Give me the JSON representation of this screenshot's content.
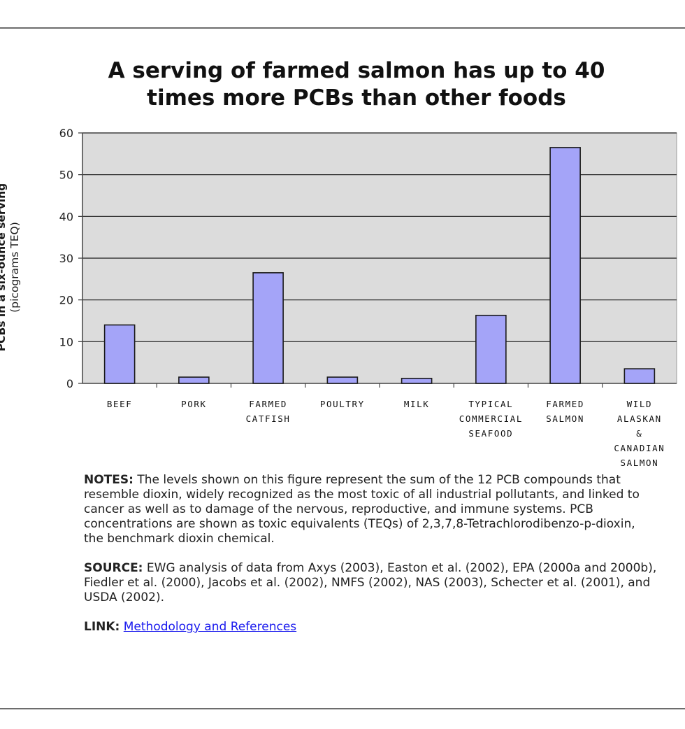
{
  "title_lines": [
    "A serving of farmed salmon has up to 40",
    "times more PCBs than other foods"
  ],
  "chart_data": {
    "type": "bar",
    "title": "A serving of farmed salmon has up to 40 times more PCBs than other foods",
    "ylabel_bold": "PCBs in a six-ounce serving",
    "ylabel_sub": "(picograms TEQ)",
    "xlabel": "",
    "ylim": [
      0,
      60
    ],
    "yticks": [
      0,
      10,
      20,
      30,
      40,
      50,
      60
    ],
    "grid": true,
    "legend": "none",
    "bar_color": "#a4a4f8",
    "plot_background": "#dcdcdc",
    "categories": [
      [
        "BEEF"
      ],
      [
        "PORK"
      ],
      [
        "FARMED",
        "CATFISH"
      ],
      [
        "POULTRY"
      ],
      [
        "MILK"
      ],
      [
        "TYPICAL",
        "COMMERCIAL",
        "SEAFOOD"
      ],
      [
        "FARMED",
        "SALMON"
      ],
      [
        "WILD",
        "ALASKAN",
        "&",
        "CANADIAN",
        "SALMON"
      ]
    ],
    "values": [
      14,
      1.5,
      26.5,
      1.5,
      1.2,
      16.3,
      56.5,
      3.5
    ]
  },
  "notes": {
    "notes_label": "NOTES:",
    "notes_text": " The levels shown on this figure represent the sum of the 12 PCB compounds that resemble dioxin, widely recognized as the most toxic of all industrial pollutants, and linked to cancer as well as to damage of the nervous, reproductive, and immune systems. PCB concentrations are shown as toxic equivalents (TEQs) of 2,3,7,8-Tetrachlorodibenzo-p-dioxin, the benchmark dioxin chemical.",
    "source_label": "SOURCE:",
    "source_text": "  EWG analysis of data from Axys (2003), Easton et al. (2002), EPA (2000a and 2000b), Fiedler et al. (2000), Jacobs et al. (2002), NMFS (2002), NAS (2003), Schecter et al. (2001), and USDA (2002).",
    "link_label": "LINK:",
    "link_text": "Methodology and References"
  }
}
